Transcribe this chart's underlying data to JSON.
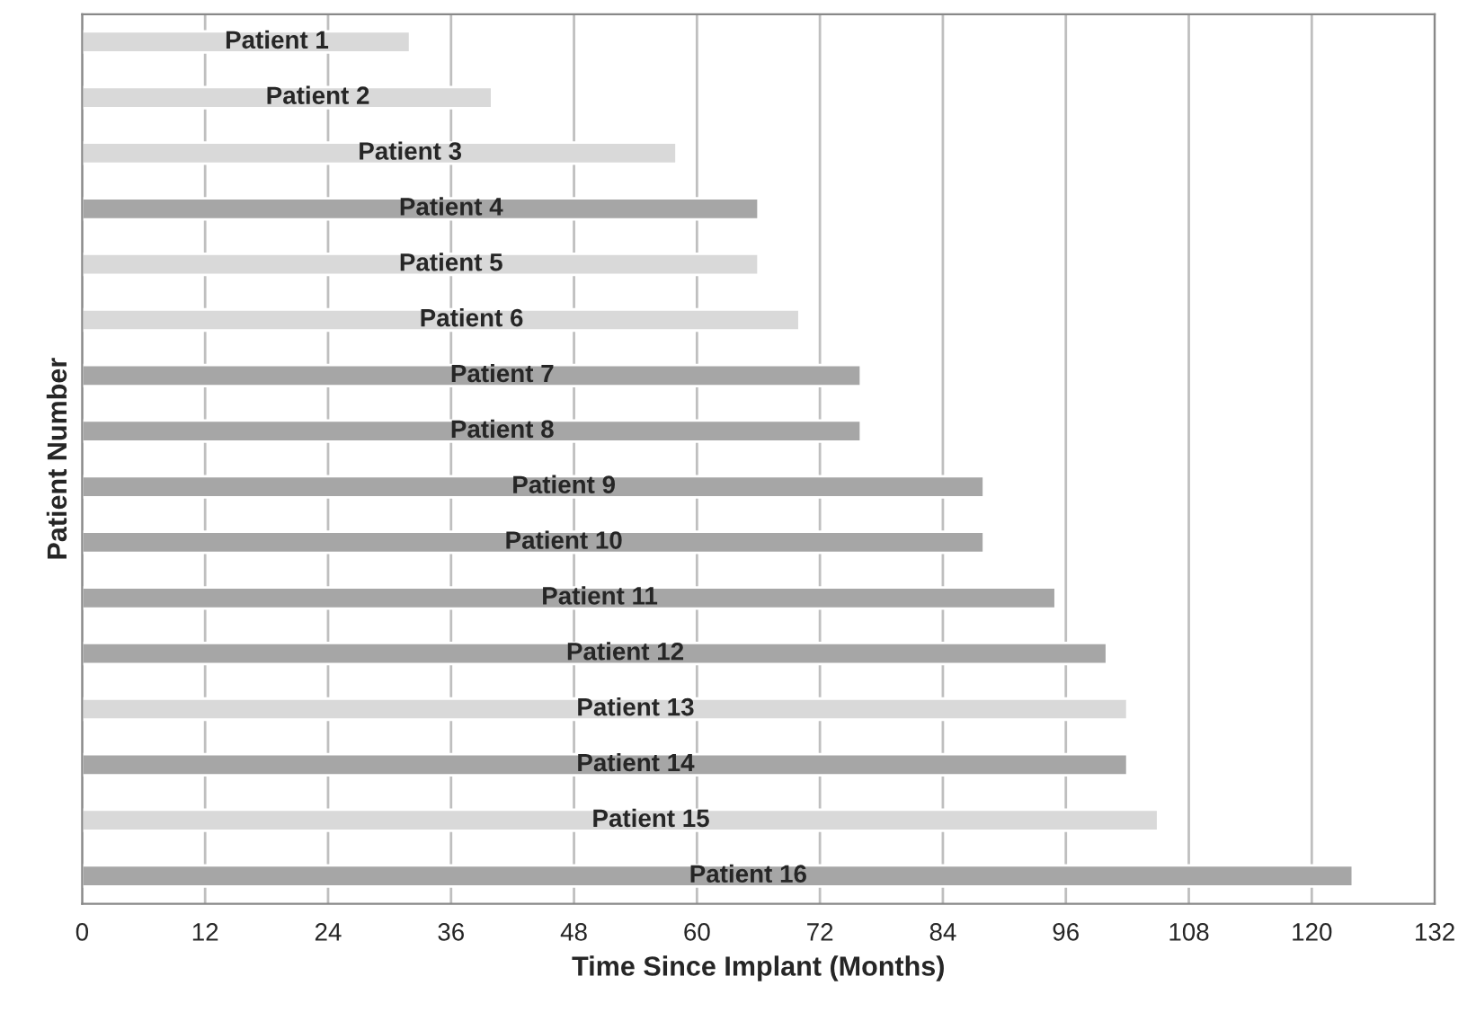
{
  "chart_data": {
    "type": "bar",
    "orientation": "horizontal",
    "xlabel": "Time Since Implant (Months)",
    "ylabel": "Patient Number",
    "categories": [
      "Patient 1",
      "Patient 2",
      "Patient 3",
      "Patient 4",
      "Patient 5",
      "Patient 6",
      "Patient 7",
      "Patient 8",
      "Patient 9",
      "Patient 10",
      "Patient 11",
      "Patient 12",
      "Patient 13",
      "Patient 14",
      "Patient 15",
      "Patient 16"
    ],
    "values": [
      32,
      40,
      58,
      66,
      66,
      70,
      76,
      76,
      88,
      88,
      95,
      100,
      102,
      102,
      105,
      124
    ],
    "colors": [
      "#d9d9d9",
      "#d9d9d9",
      "#d9d9d9",
      "#a6a6a6",
      "#d9d9d9",
      "#d9d9d9",
      "#a6a6a6",
      "#a6a6a6",
      "#a6a6a6",
      "#a6a6a6",
      "#a6a6a6",
      "#a6a6a6",
      "#d9d9d9",
      "#a6a6a6",
      "#d9d9d9",
      "#a6a6a6"
    ],
    "xlim": [
      0,
      132
    ],
    "xticks": [
      0,
      12,
      24,
      36,
      48,
      60,
      72,
      84,
      96,
      108,
      120,
      132
    ],
    "grid": "x",
    "tick_labels": "x"
  }
}
